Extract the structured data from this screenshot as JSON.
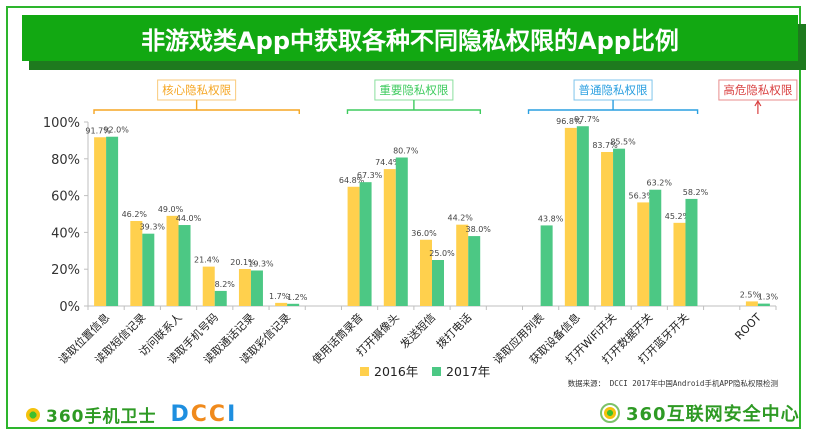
{
  "title": "非游戏类App中获取各种不同隐私权限的App比例",
  "colors": {
    "frame": "#2db52d",
    "title_bg": "#12a812",
    "title_shadow": "#1e7a1e",
    "series_2016": "#ffd04d",
    "series_2017": "#4cc884",
    "group_core": "#f5a623",
    "group_important": "#3ecb5e",
    "group_normal": "#2a9fe0",
    "group_danger": "#d94040"
  },
  "groups": [
    {
      "label": "核心隐私权限",
      "color": "#f5a623",
      "from": 0,
      "to": 5
    },
    {
      "label": "重要隐私权限",
      "color": "#3ecb5e",
      "from": 7,
      "to": 10
    },
    {
      "label": "普通隐私权限",
      "color": "#2a9fe0",
      "from": 12,
      "to": 16
    },
    {
      "label": "高危隐私权限",
      "color": "#d94040",
      "from": 18,
      "to": 18
    }
  ],
  "chart_data": {
    "type": "bar",
    "title": "非游戏类App中获取各种不同隐私权限的App比例",
    "xlabel": "",
    "ylabel": "",
    "ylim": [
      0,
      100
    ],
    "yticks": [
      "0%",
      "20%",
      "40%",
      "60%",
      "80%",
      "100%"
    ],
    "grid": false,
    "legend_position": "bottom",
    "categories": [
      "读取位置信息",
      "读取短信记录",
      "访问联系人",
      "读取手机号码",
      "读取通话记录",
      "读取彩信记录",
      "",
      "使用话筒录音",
      "打开摄像头",
      "发送短信",
      "拨打电话",
      "",
      "读取应用列表",
      "获取设备信息",
      "打开WiFi开关",
      "打开数据开关",
      "打开蓝牙开关",
      "",
      "ROOT"
    ],
    "series": [
      {
        "name": "2016年",
        "color": "#ffd04d",
        "values": [
          91.7,
          46.2,
          49.0,
          21.4,
          20.1,
          1.7,
          null,
          64.8,
          74.4,
          36.0,
          44.2,
          null,
          null,
          96.8,
          83.7,
          56.3,
          45.2,
          null,
          2.5
        ],
        "labels": [
          "91.7%",
          "46.2%",
          "49.0%",
          "21.4%",
          "20.1%",
          "1.7%",
          "",
          "64.8%",
          "74.4%",
          "36.0%",
          "44.2%",
          "",
          "",
          "96.8%",
          "83.7%",
          "56.3%",
          "45.2%",
          "",
          "2.5%"
        ]
      },
      {
        "name": "2017年",
        "color": "#4cc884",
        "values": [
          92.0,
          39.3,
          44.0,
          8.2,
          19.3,
          1.2,
          null,
          67.3,
          80.7,
          25.0,
          38.0,
          null,
          43.8,
          97.7,
          85.5,
          63.2,
          58.2,
          null,
          1.3
        ],
        "labels": [
          "92.0%",
          "39.3%",
          "44.0%",
          "8.2%",
          "19.3%",
          "1.2%",
          "",
          "67.3%",
          "80.7%",
          "25.0%",
          "38.0%",
          "",
          "43.8%",
          "97.7%",
          "85.5%",
          "63.2%",
          "58.2%",
          "",
          "1.3%"
        ]
      }
    ],
    "source_note": "数据来源： DCCI 2017年中国Android手机APP隐私权限检测"
  },
  "footer": {
    "left_logo_text": "360手机卫士",
    "left_logo_brand": "DCCI",
    "right_logo_text": "360互联网安全中心"
  }
}
